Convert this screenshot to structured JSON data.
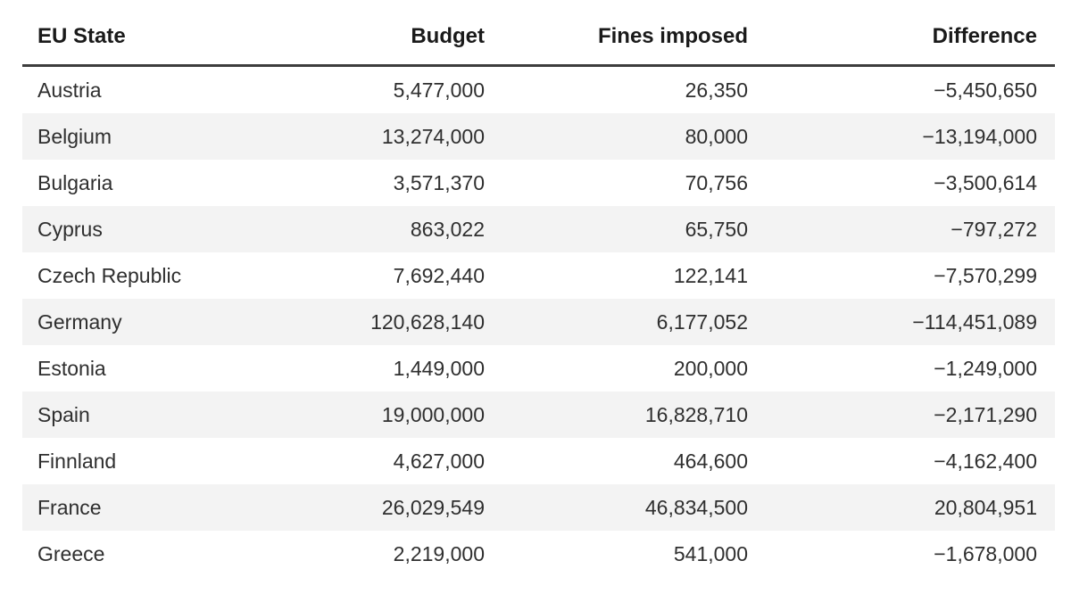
{
  "page": {
    "background": "#ffffff"
  },
  "table": {
    "columns": [
      {
        "key": "state",
        "label": "EU State"
      },
      {
        "key": "budget",
        "label": "Budget"
      },
      {
        "key": "fines",
        "label": "Fines imposed"
      },
      {
        "key": "difference",
        "label": "Difference"
      }
    ],
    "rows": [
      {
        "state": "Austria",
        "budget": "5,477,000",
        "fines": "26,350",
        "difference": "−5,450,650"
      },
      {
        "state": "Belgium",
        "budget": "13,274,000",
        "fines": "80,000",
        "difference": "−13,194,000"
      },
      {
        "state": "Bulgaria",
        "budget": "3,571,370",
        "fines": "70,756",
        "difference": "−3,500,614"
      },
      {
        "state": "Cyprus",
        "budget": "863,022",
        "fines": "65,750",
        "difference": "−797,272"
      },
      {
        "state": "Czech Republic",
        "budget": "7,692,440",
        "fines": "122,141",
        "difference": "−7,570,299"
      },
      {
        "state": "Germany",
        "budget": "120,628,140",
        "fines": "6,177,052",
        "difference": "−114,451,089"
      },
      {
        "state": "Estonia",
        "budget": "1,449,000",
        "fines": "200,000",
        "difference": "−1,249,000"
      },
      {
        "state": "Spain",
        "budget": "19,000,000",
        "fines": "16,828,710",
        "difference": "−2,171,290"
      },
      {
        "state": "Finnland",
        "budget": "4,627,000",
        "fines": "464,600",
        "difference": "−4,162,400"
      },
      {
        "state": "France",
        "budget": "26,029,549",
        "fines": "46,834,500",
        "difference": "20,804,951"
      },
      {
        "state": "Greece",
        "budget": "2,219,000",
        "fines": "541,000",
        "difference": "−1,678,000"
      }
    ],
    "style": {
      "stripe_color": "#f3f3f3",
      "header_rule_color": "#3d3d3d",
      "header_text_color": "#1a1a1a",
      "body_text_color": "#2f2f2f"
    }
  },
  "chart_data": {
    "type": "table",
    "title": "",
    "columns": [
      "EU State",
      "Budget",
      "Fines imposed",
      "Difference"
    ],
    "rows": [
      [
        "Austria",
        5477000,
        26350,
        -5450650
      ],
      [
        "Belgium",
        13274000,
        80000,
        -13194000
      ],
      [
        "Bulgaria",
        3571370,
        70756,
        -3500614
      ],
      [
        "Cyprus",
        863022,
        65750,
        -797272
      ],
      [
        "Czech Republic",
        7692440,
        122141,
        -7570299
      ],
      [
        "Germany",
        120628140,
        6177052,
        -114451089
      ],
      [
        "Estonia",
        1449000,
        200000,
        -1249000
      ],
      [
        "Spain",
        19000000,
        16828710,
        -2171290
      ],
      [
        "Finnland",
        4627000,
        464600,
        -4162400
      ],
      [
        "France",
        26029549,
        46834500,
        20804951
      ],
      [
        "Greece",
        2219000,
        541000,
        -1678000
      ]
    ],
    "layout_hints": {
      "striped_rows": true,
      "header_rule": true,
      "numeric_columns_right_aligned": true
    }
  }
}
